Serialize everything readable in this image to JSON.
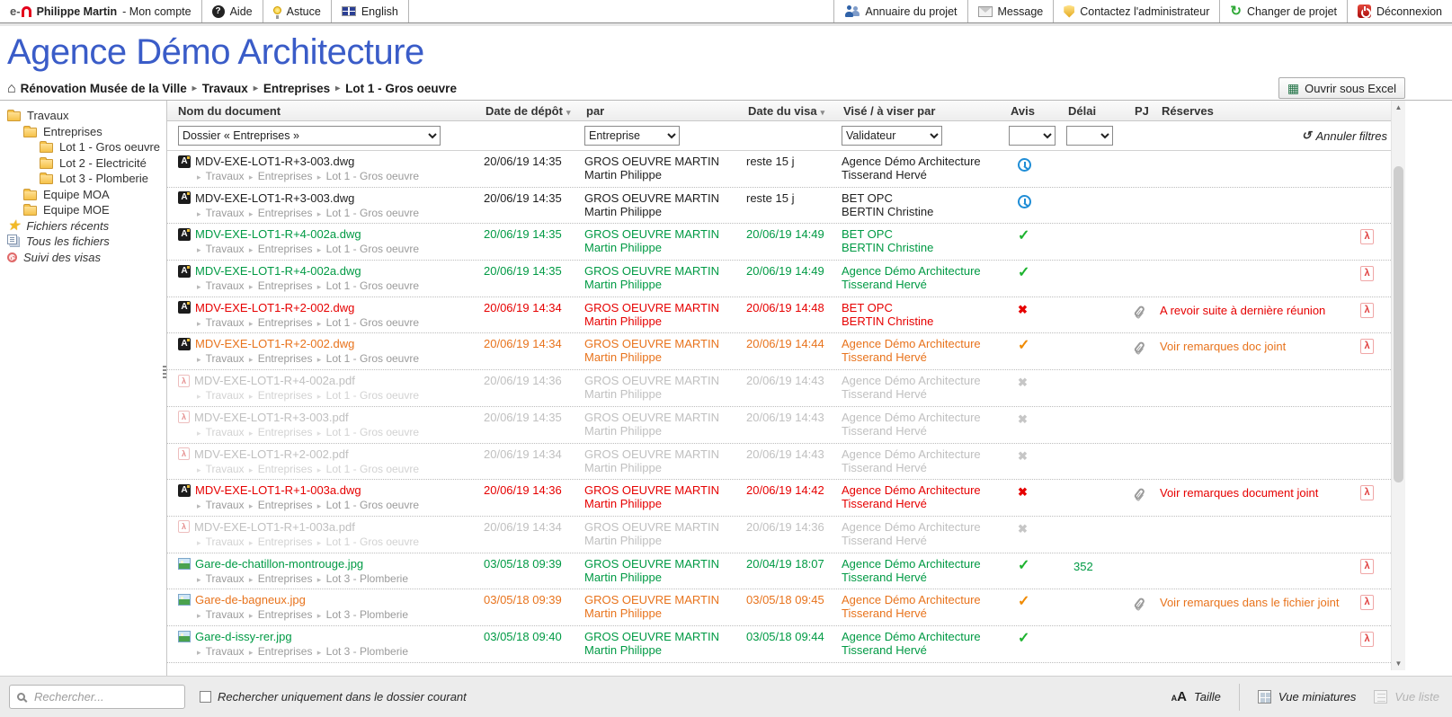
{
  "topbar": {
    "left": [
      {
        "name": "account",
        "icon": "logo-icon",
        "bold": "Philippe Martin",
        "label": " - Mon compte"
      },
      {
        "name": "aide",
        "icon": "help-icon",
        "label": "Aide"
      },
      {
        "name": "astuce",
        "icon": "tip-icon",
        "label": "Astuce"
      },
      {
        "name": "english",
        "icon": "flag-icon",
        "label": "English"
      }
    ],
    "right": [
      {
        "name": "annuaire-du-projet",
        "icon": "directory-icon",
        "label": "Annuaire du projet"
      },
      {
        "name": "message",
        "icon": "message-icon",
        "label": "Message"
      },
      {
        "name": "contactez-administrateur",
        "icon": "shield-icon",
        "label": "Contactez l'administrateur"
      },
      {
        "name": "changer-de-projet",
        "icon": "switch-project-icon",
        "label": "Changer de projet"
      },
      {
        "name": "deconnexion",
        "icon": "logout-icon",
        "label": "Déconnexion"
      }
    ]
  },
  "title": "Agence Démo Architecture",
  "breadcrumb": {
    "root": "Rénovation Musée de la Ville",
    "items": [
      "Travaux",
      "Entreprises",
      "Lot 1 - Gros oeuvre"
    ]
  },
  "excel_button_label": "Ouvrir sous Excel",
  "sidebar": {
    "items": [
      {
        "label": "Travaux",
        "indent": 0,
        "icon": "folder"
      },
      {
        "label": "Entreprises",
        "indent": 1,
        "icon": "folder"
      },
      {
        "label": "Lot 1 - Gros oeuvre",
        "indent": 2,
        "icon": "folder"
      },
      {
        "label": "Lot 2 - Electricité",
        "indent": 2,
        "icon": "folder"
      },
      {
        "label": "Lot 3 - Plomberie",
        "indent": 2,
        "icon": "folder"
      },
      {
        "label": "Equipe MOA",
        "indent": 1,
        "icon": "folder"
      },
      {
        "label": "Equipe MOE",
        "indent": 1,
        "icon": "folder"
      },
      {
        "label": "Fichiers récents",
        "indent": 0,
        "icon": "star",
        "italic": true
      },
      {
        "label": "Tous les fichiers",
        "indent": 0,
        "icon": "files",
        "italic": true
      },
      {
        "label": "Suivi des visas",
        "indent": 0,
        "icon": "visa",
        "italic": true
      }
    ]
  },
  "table": {
    "columns": [
      {
        "label": "Nom du document",
        "sort": false
      },
      {
        "label": "Date de dépôt",
        "sort": true
      },
      {
        "label": "par",
        "sort": false
      },
      {
        "label": "Date du visa",
        "sort": true
      },
      {
        "label": "Visé / à viser par",
        "sort": false
      },
      {
        "label": "Avis",
        "sort": false
      },
      {
        "label": "Délai",
        "sort": false
      },
      {
        "label": "PJ",
        "sort": false
      },
      {
        "label": "Réserves",
        "sort": false
      },
      {
        "label": "",
        "sort": false
      }
    ],
    "filters": {
      "folder": "Dossier « Entreprises »",
      "company": "Entreprise",
      "validator": "Validateur",
      "cancel_label": "Annuler filtres"
    },
    "rows": [
      {
        "icon": "dwg",
        "tone": "black",
        "name": "MDV-EXE-LOT1-R+3-003.dwg",
        "path": [
          "Travaux",
          "Entreprises",
          "Lot 1 - Gros oeuvre"
        ],
        "depot": "20/06/19 14:35",
        "par_org": "GROS OEUVRE MARTIN",
        "par_person": "Martin Philippe",
        "visa": "reste 15 j",
        "visa_org": "Agence Démo Architecture",
        "visa_person": "Tisserand Hervé",
        "avis": "pending",
        "delai": "",
        "pj": false,
        "reserve": "",
        "action": false
      },
      {
        "icon": "dwg",
        "tone": "black",
        "name": "MDV-EXE-LOT1-R+3-003.dwg",
        "path": [
          "Travaux",
          "Entreprises",
          "Lot 1 - Gros oeuvre"
        ],
        "depot": "20/06/19 14:35",
        "par_org": "GROS OEUVRE MARTIN",
        "par_person": "Martin Philippe",
        "visa": "reste 15 j",
        "visa_org": "BET OPC",
        "visa_person": "BERTIN Christine",
        "avis": "pending",
        "delai": "",
        "pj": false,
        "reserve": "",
        "action": false
      },
      {
        "icon": "dwg",
        "tone": "green",
        "name": "MDV-EXE-LOT1-R+4-002a.dwg",
        "path": [
          "Travaux",
          "Entreprises",
          "Lot 1 - Gros oeuvre"
        ],
        "depot": "20/06/19 14:35",
        "par_org": "GROS OEUVRE MARTIN",
        "par_person": "Martin Philippe",
        "visa": "20/06/19 14:49",
        "visa_org": "BET OPC",
        "visa_person": "BERTIN Christine",
        "avis": "ok",
        "delai": "",
        "pj": false,
        "reserve": "",
        "action": true
      },
      {
        "icon": "dwg",
        "tone": "green",
        "name": "MDV-EXE-LOT1-R+4-002a.dwg",
        "path": [
          "Travaux",
          "Entreprises",
          "Lot 1 - Gros oeuvre"
        ],
        "depot": "20/06/19 14:35",
        "par_org": "GROS OEUVRE MARTIN",
        "par_person": "Martin Philippe",
        "visa": "20/06/19 14:49",
        "visa_org": "Agence Démo Architecture",
        "visa_person": "Tisserand Hervé",
        "avis": "ok",
        "delai": "",
        "pj": false,
        "reserve": "",
        "action": true
      },
      {
        "icon": "dwg",
        "tone": "red",
        "name": "MDV-EXE-LOT1-R+2-002.dwg",
        "path": [
          "Travaux",
          "Entreprises",
          "Lot 1 - Gros oeuvre"
        ],
        "depot": "20/06/19 14:34",
        "par_org": "GROS OEUVRE MARTIN",
        "par_person": "Martin Philippe",
        "visa": "20/06/19 14:48",
        "visa_org": "BET OPC",
        "visa_person": "BERTIN Christine",
        "avis": "refused",
        "delai": "",
        "pj": true,
        "reserve": "A revoir suite à dernière réunion",
        "action": true
      },
      {
        "icon": "dwg",
        "tone": "orange",
        "name": "MDV-EXE-LOT1-R+2-002.dwg",
        "path": [
          "Travaux",
          "Entreprises",
          "Lot 1 - Gros oeuvre"
        ],
        "depot": "20/06/19 14:34",
        "par_org": "GROS OEUVRE MARTIN",
        "par_person": "Martin Philippe",
        "visa": "20/06/19 14:44",
        "visa_org": "Agence Démo Architecture",
        "visa_person": "Tisserand Hervé",
        "avis": "ok-reserve",
        "delai": "",
        "pj": true,
        "reserve": "Voir remarques doc joint",
        "action": true
      },
      {
        "icon": "pdf",
        "tone": "muted",
        "name": "MDV-EXE-LOT1-R+4-002a.pdf",
        "path": [
          "Travaux",
          "Entreprises",
          "Lot 1 - Gros oeuvre"
        ],
        "depot": "20/06/19 14:36",
        "par_org": "GROS OEUVRE MARTIN",
        "par_person": "Martin Philippe",
        "visa": "20/06/19 14:43",
        "visa_org": "Agence Démo Architecture",
        "visa_person": "Tisserand Hervé",
        "avis": "none",
        "delai": "",
        "pj": false,
        "reserve": "",
        "action": false
      },
      {
        "icon": "pdf",
        "tone": "muted",
        "name": "MDV-EXE-LOT1-R+3-003.pdf",
        "path": [
          "Travaux",
          "Entreprises",
          "Lot 1 - Gros oeuvre"
        ],
        "depot": "20/06/19 14:35",
        "par_org": "GROS OEUVRE MARTIN",
        "par_person": "Martin Philippe",
        "visa": "20/06/19 14:43",
        "visa_org": "Agence Démo Architecture",
        "visa_person": "Tisserand Hervé",
        "avis": "none",
        "delai": "",
        "pj": false,
        "reserve": "",
        "action": false
      },
      {
        "icon": "pdf",
        "tone": "muted",
        "name": "MDV-EXE-LOT1-R+2-002.pdf",
        "path": [
          "Travaux",
          "Entreprises",
          "Lot 1 - Gros oeuvre"
        ],
        "depot": "20/06/19 14:34",
        "par_org": "GROS OEUVRE MARTIN",
        "par_person": "Martin Philippe",
        "visa": "20/06/19 14:43",
        "visa_org": "Agence Démo Architecture",
        "visa_person": "Tisserand Hervé",
        "avis": "none",
        "delai": "",
        "pj": false,
        "reserve": "",
        "action": false
      },
      {
        "icon": "dwg",
        "tone": "red",
        "name": "MDV-EXE-LOT1-R+1-003a.dwg",
        "path": [
          "Travaux",
          "Entreprises",
          "Lot 1 - Gros oeuvre"
        ],
        "depot": "20/06/19 14:36",
        "par_org": "GROS OEUVRE MARTIN",
        "par_person": "Martin Philippe",
        "visa": "20/06/19 14:42",
        "visa_org": "Agence Démo Architecture",
        "visa_person": "Tisserand Hervé",
        "avis": "refused",
        "delai": "",
        "pj": true,
        "reserve": "Voir remarques document joint",
        "action": true
      },
      {
        "icon": "pdf",
        "tone": "muted",
        "name": "MDV-EXE-LOT1-R+1-003a.pdf",
        "path": [
          "Travaux",
          "Entreprises",
          "Lot 1 - Gros oeuvre"
        ],
        "depot": "20/06/19 14:34",
        "par_org": "GROS OEUVRE MARTIN",
        "par_person": "Martin Philippe",
        "visa": "20/06/19 14:36",
        "visa_org": "Agence Démo Architecture",
        "visa_person": "Tisserand Hervé",
        "avis": "none",
        "delai": "",
        "pj": false,
        "reserve": "",
        "action": false
      },
      {
        "icon": "jpg",
        "tone": "green",
        "name": "Gare-de-chatillon-montrouge.jpg",
        "path": [
          "Travaux",
          "Entreprises",
          "Lot 3 - Plomberie"
        ],
        "depot": "03/05/18 09:39",
        "par_org": "GROS OEUVRE MARTIN",
        "par_person": "Martin Philippe",
        "visa": "20/04/19 18:07",
        "visa_org": "Agence Démo Architecture",
        "visa_person": "Tisserand Hervé",
        "avis": "ok",
        "delai": "352",
        "pj": false,
        "reserve": "",
        "action": true
      },
      {
        "icon": "jpg",
        "tone": "orange",
        "name": "Gare-de-bagneux.jpg",
        "path": [
          "Travaux",
          "Entreprises",
          "Lot 3 - Plomberie"
        ],
        "depot": "03/05/18 09:39",
        "par_org": "GROS OEUVRE MARTIN",
        "par_person": "Martin Philippe",
        "visa": "03/05/18 09:45",
        "visa_org": "Agence Démo Architecture",
        "visa_person": "Tisserand Hervé",
        "avis": "ok-reserve",
        "delai": "",
        "pj": true,
        "reserve": "Voir remarques dans le fichier joint",
        "action": true
      },
      {
        "icon": "jpg",
        "tone": "green",
        "name": "Gare-d-issy-rer.jpg",
        "path": [
          "Travaux",
          "Entreprises",
          "Lot 3 - Plomberie"
        ],
        "depot": "03/05/18 09:40",
        "par_org": "GROS OEUVRE MARTIN",
        "par_person": "Martin Philippe",
        "visa": "03/05/18 09:44",
        "visa_org": "Agence Démo Architecture",
        "visa_person": "Tisserand Hervé",
        "avis": "ok",
        "delai": "",
        "pj": false,
        "reserve": "",
        "action": true
      }
    ]
  },
  "footer": {
    "search_placeholder": "Rechercher...",
    "scope_label": "Rechercher uniquement dans le dossier courant",
    "size_label": "Taille",
    "thumbnails_label": "Vue miniatures",
    "list_label": "Vue liste"
  },
  "colors": {
    "title_blue": "#3a5cc8",
    "approved_green": "#009a44",
    "refused_red": "#e60000",
    "reserve_orange": "#e8731c",
    "cancelled_gray": "#c0c0c0",
    "pending_blue": "#1f8dd6"
  }
}
